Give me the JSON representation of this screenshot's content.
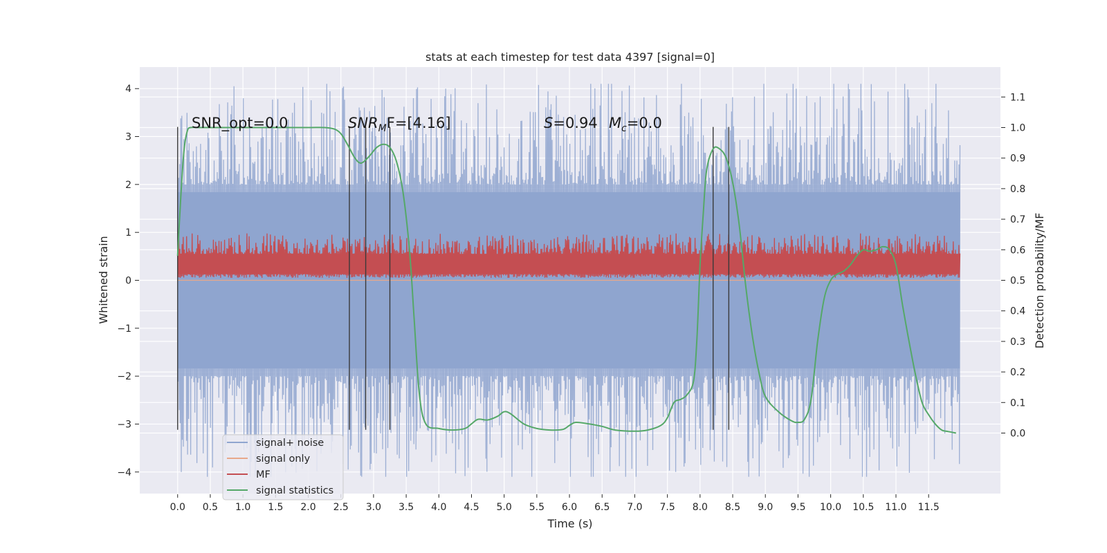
{
  "chart_data": {
    "type": "line",
    "title": "stats at each timestep for test data 4397 [signal=0]",
    "xlabel": "Time (s)",
    "ylabel": "Whitened strain",
    "ylabel_right": "Detection probability/MF",
    "xlim": [
      -0.58,
      12.6
    ],
    "ylim": [
      -4.45,
      4.45
    ],
    "ylim_right": [
      -0.198,
      1.198
    ],
    "x_ticks": [
      "0.0",
      "0.5",
      "1.0",
      "1.5",
      "2.0",
      "2.5",
      "3.0",
      "3.5",
      "4.0",
      "4.5",
      "5.0",
      "5.5",
      "6.0",
      "6.5",
      "7.0",
      "7.5",
      "8.0",
      "8.5",
      "9.0",
      "9.5",
      "10.0",
      "10.5",
      "11.0",
      "11.5"
    ],
    "y_ticks": [
      "4",
      "3",
      "2",
      "1",
      "0",
      "−1",
      "−2",
      "−3",
      "−4"
    ],
    "y_ticks_right": [
      "1.1",
      "1.0",
      "0.9",
      "0.8",
      "0.7",
      "0.6",
      "0.5",
      "0.4",
      "0.3",
      "0.2",
      "0.1",
      "0.0"
    ],
    "grid": true,
    "legend_position": "lower-left",
    "annotations": {
      "snr_opt": "SNR_opt=0.0",
      "snr_mf_italic": "SNR",
      "snr_mf_sub": "M",
      "snr_mf_rest": "F=[4.16]",
      "s_italic": "S",
      "s_rest": "=0.94",
      "mc_italic": "M",
      "mc_sub": "c",
      "mc_rest": "=0.0"
    },
    "series": [
      {
        "name": "signal+ noise",
        "color": "#8fa5cf",
        "x_range": [
          0,
          11.98
        ],
        "core_amplitude": 2.0,
        "peak_amplitude": 4.1
      },
      {
        "name": "signal only",
        "color": "#e8a88a",
        "x": [
          0,
          11.98
        ],
        "y": [
          0,
          0
        ]
      },
      {
        "name": "MF",
        "color": "#c44e52",
        "x_range": [
          0,
          11.98
        ],
        "y_min": 0.05,
        "y_max": 0.98
      },
      {
        "name": "signal statistics",
        "color": "#55a868",
        "axis": "right",
        "x": [
          0,
          0.05,
          0.1,
          0.15,
          0.2,
          0.3,
          0.5,
          1.0,
          1.5,
          2.0,
          2.25,
          2.4,
          2.5,
          2.6,
          2.7,
          2.78,
          2.85,
          2.95,
          3.05,
          3.15,
          3.25,
          3.35,
          3.45,
          3.55,
          3.62,
          3.7,
          3.8,
          4.0,
          4.2,
          4.4,
          4.5,
          4.6,
          4.75,
          4.9,
          5.0,
          5.1,
          5.3,
          5.5,
          5.7,
          5.9,
          6.0,
          6.1,
          6.3,
          6.5,
          6.7,
          7.0,
          7.2,
          7.4,
          7.5,
          7.6,
          7.7,
          7.8,
          7.9,
          7.95,
          8.0,
          8.05,
          8.1,
          8.2,
          8.3,
          8.4,
          8.5,
          8.6,
          8.7,
          8.8,
          8.9,
          9.0,
          9.2,
          9.4,
          9.5,
          9.6,
          9.7,
          9.8,
          9.9,
          10.0,
          10.1,
          10.2,
          10.3,
          10.4,
          10.5,
          10.6,
          10.7,
          10.8,
          10.9,
          11.0,
          11.1,
          11.2,
          11.3,
          11.4,
          11.5,
          11.6,
          11.7,
          11.8,
          11.92
        ],
        "y": [
          0.58,
          0.78,
          0.93,
          0.99,
          1.0,
          1.0,
          1.0,
          1.0,
          1.0,
          1.0,
          1.0,
          0.995,
          0.98,
          0.945,
          0.905,
          0.885,
          0.888,
          0.91,
          0.935,
          0.945,
          0.935,
          0.89,
          0.79,
          0.6,
          0.38,
          0.13,
          0.03,
          0.015,
          0.01,
          0.015,
          0.03,
          0.045,
          0.043,
          0.055,
          0.07,
          0.063,
          0.03,
          0.015,
          0.01,
          0.012,
          0.025,
          0.035,
          0.03,
          0.022,
          0.01,
          0.006,
          0.01,
          0.025,
          0.05,
          0.1,
          0.11,
          0.125,
          0.17,
          0.3,
          0.55,
          0.72,
          0.86,
          0.93,
          0.93,
          0.9,
          0.82,
          0.68,
          0.48,
          0.32,
          0.2,
          0.12,
          0.07,
          0.04,
          0.035,
          0.045,
          0.11,
          0.3,
          0.44,
          0.5,
          0.52,
          0.53,
          0.55,
          0.58,
          0.6,
          0.595,
          0.6,
          0.61,
          0.6,
          0.55,
          0.42,
          0.3,
          0.19,
          0.1,
          0.06,
          0.03,
          0.01,
          0.005,
          0.0
        ]
      }
    ],
    "vertical_markers": [
      0.0,
      2.63,
      2.88,
      3.25,
      8.2,
      8.44
    ]
  }
}
